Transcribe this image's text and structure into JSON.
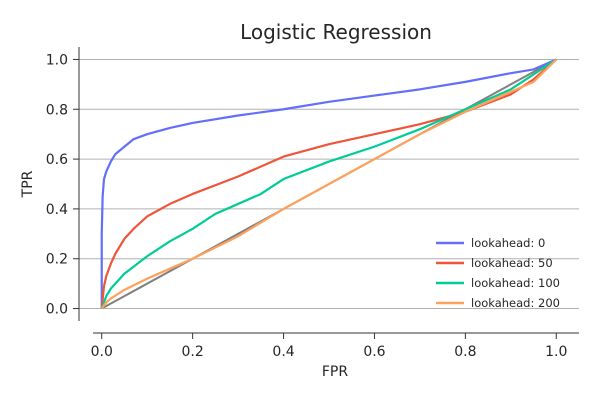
{
  "chart_data": {
    "type": "line",
    "title": "Logistic Regression",
    "xlabel": "FPR",
    "ylabel": "TPR",
    "xlim": [
      -0.05,
      1.05
    ],
    "ylim": [
      -0.05,
      1.05
    ],
    "xticks": [
      "0.0",
      "0.2",
      "0.4",
      "0.6",
      "0.8",
      "1.0"
    ],
    "yticks": [
      "0.0",
      "0.2",
      "0.4",
      "0.6",
      "0.8",
      "1.0"
    ],
    "grid": "horizontal",
    "legend_position": "lower-right",
    "reference_line": {
      "x": [
        0,
        1
      ],
      "y": [
        0,
        1
      ],
      "color": "#808080"
    },
    "series": [
      {
        "name": "lookahead: 0",
        "color": "#636efa",
        "x": [
          0,
          0.0,
          0.002,
          0.005,
          0.01,
          0.02,
          0.03,
          0.05,
          0.07,
          0.1,
          0.15,
          0.2,
          0.3,
          0.4,
          0.5,
          0.6,
          0.7,
          0.8,
          0.9,
          0.95,
          1.0
        ],
        "y": [
          0,
          0.3,
          0.45,
          0.52,
          0.55,
          0.59,
          0.62,
          0.65,
          0.68,
          0.7,
          0.725,
          0.745,
          0.775,
          0.8,
          0.83,
          0.855,
          0.88,
          0.91,
          0.945,
          0.96,
          1.0
        ]
      },
      {
        "name": "lookahead: 50",
        "color": "#ef553b",
        "x": [
          0,
          0.005,
          0.01,
          0.02,
          0.03,
          0.05,
          0.07,
          0.1,
          0.15,
          0.2,
          0.3,
          0.4,
          0.5,
          0.6,
          0.7,
          0.8,
          0.9,
          0.95,
          1.0
        ],
        "y": [
          0,
          0.09,
          0.13,
          0.18,
          0.22,
          0.28,
          0.32,
          0.37,
          0.42,
          0.46,
          0.53,
          0.61,
          0.66,
          0.7,
          0.74,
          0.79,
          0.86,
          0.92,
          1.0
        ]
      },
      {
        "name": "lookahead: 100",
        "color": "#00cc96",
        "x": [
          0,
          0.01,
          0.02,
          0.05,
          0.1,
          0.15,
          0.2,
          0.25,
          0.3,
          0.35,
          0.4,
          0.5,
          0.6,
          0.7,
          0.8,
          0.9,
          0.95,
          1.0
        ],
        "y": [
          0,
          0.05,
          0.08,
          0.14,
          0.21,
          0.27,
          0.32,
          0.38,
          0.42,
          0.46,
          0.52,
          0.59,
          0.65,
          0.72,
          0.8,
          0.88,
          0.94,
          1.0
        ]
      },
      {
        "name": "lookahead: 200",
        "color": "#ffa15a",
        "x": [
          0,
          0.01,
          0.02,
          0.05,
          0.1,
          0.15,
          0.2,
          0.3,
          0.4,
          0.5,
          0.6,
          0.7,
          0.8,
          0.9,
          0.95,
          1.0
        ],
        "y": [
          0,
          0.025,
          0.04,
          0.075,
          0.12,
          0.16,
          0.2,
          0.29,
          0.4,
          0.5,
          0.6,
          0.7,
          0.79,
          0.87,
          0.91,
          1.0
        ]
      }
    ]
  }
}
